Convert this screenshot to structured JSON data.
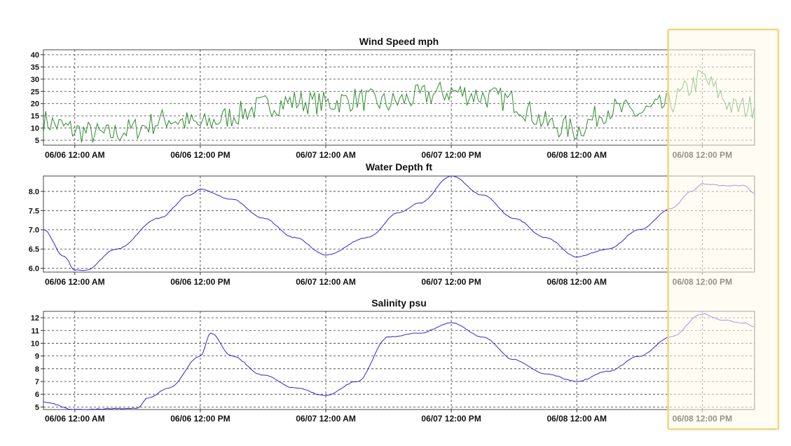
{
  "chart_data": [
    {
      "type": "line",
      "title": "Wind Speed mph",
      "xlabel": "",
      "ylabel": "",
      "x_start": "06/05 09:00 PM",
      "x_end": "06/08 05:00 PM",
      "x_ticks": [
        "06/06 12:00 AM",
        "06/06 12:00 PM",
        "06/07 12:00 AM",
        "06/07 12:00 PM",
        "06/08 12:00 AM",
        "06/08 12:00 PM"
      ],
      "y_ticks": [
        5,
        10,
        15,
        20,
        25,
        30,
        35,
        40
      ],
      "ylim": [
        3,
        42
      ],
      "grid": true,
      "color": "#2e8b2e",
      "series": [
        {
          "x": [
            "06/05 09:00 PM",
            "06/06 12:00 AM",
            "06/06 03:00 AM",
            "06/06 06:00 AM",
            "06/06 09:00 AM",
            "06/06 12:00 PM",
            "06/06 03:00 PM",
            "06/06 06:00 PM",
            "06/06 09:00 PM",
            "06/07 12:00 AM",
            "06/07 03:00 AM",
            "06/07 06:00 AM",
            "06/07 09:00 AM",
            "06/07 12:00 PM",
            "06/07 03:00 PM",
            "06/07 06:00 PM",
            "06/07 09:00 PM",
            "06/08 12:00 AM",
            "06/08 03:00 AM",
            "06/08 06:00 AM",
            "06/08 09:00 AM",
            "06/08 12:00 PM",
            "06/08 03:00 PM",
            "06/08 05:00 PM"
          ],
          "values": [
            13,
            9,
            7,
            10,
            14,
            11,
            15,
            19,
            21,
            20,
            22,
            20,
            23,
            25,
            23,
            21,
            12,
            9,
            18,
            16,
            20,
            31,
            18,
            19
          ]
        }
      ]
    },
    {
      "type": "line",
      "title": "Water Depth ft",
      "xlabel": "",
      "ylabel": "",
      "x_start": "06/05 09:00 PM",
      "x_end": "06/08 05:00 PM",
      "x_ticks": [
        "06/06 12:00 AM",
        "06/06 12:00 PM",
        "06/07 12:00 AM",
        "06/07 12:00 PM",
        "06/08 12:00 AM",
        "06/08 12:00 PM"
      ],
      "y_ticks": [
        6.0,
        6.5,
        7.0,
        7.5,
        8.0
      ],
      "y_tick_labels": [
        "6.0",
        "6.5",
        "7.0",
        "7.5",
        "8.0"
      ],
      "ylim": [
        5.9,
        8.4
      ],
      "grid": true,
      "color": "#3a1fd6",
      "series": [
        {
          "x": [
            "06/05 09:00 PM",
            "06/05 11:00 PM",
            "06/06 12:00 AM",
            "06/06 01:00 AM",
            "06/06 04:00 AM",
            "06/06 08:00 AM",
            "06/06 11:00 AM",
            "06/06 12:00 PM",
            "06/06 03:00 PM",
            "06/06 06:00 PM",
            "06/06 09:00 PM",
            "06/07 12:00 AM",
            "06/07 04:00 AM",
            "06/07 07:00 AM",
            "06/07 09:00 AM",
            "06/07 12:00 PM",
            "06/07 03:00 PM",
            "06/07 06:00 PM",
            "06/07 09:00 PM",
            "06/08 12:00 AM",
            "06/08 03:00 AM",
            "06/08 06:00 AM",
            "06/08 09:00 AM",
            "06/08 11:00 AM",
            "06/08 12:00 PM",
            "06/08 02:00 PM",
            "06/08 04:00 PM",
            "06/08 05:00 PM"
          ],
          "values": [
            7.0,
            6.3,
            5.95,
            5.95,
            6.5,
            7.3,
            7.9,
            8.05,
            7.8,
            7.3,
            6.8,
            6.35,
            6.8,
            7.45,
            7.7,
            8.4,
            7.9,
            7.3,
            6.8,
            6.3,
            6.5,
            7.0,
            7.55,
            8.0,
            8.2,
            8.15,
            8.15,
            7.95
          ]
        }
      ]
    },
    {
      "type": "line",
      "title": "Salinity psu",
      "xlabel": "",
      "ylabel": "",
      "x_start": "06/05 09:00 PM",
      "x_end": "06/08 05:00 PM",
      "x_ticks": [
        "06/06 12:00 AM",
        "06/06 12:00 PM",
        "06/07 12:00 AM",
        "06/07 12:00 PM",
        "06/08 12:00 AM",
        "06/08 12:00 PM"
      ],
      "y_ticks": [
        5,
        6,
        7,
        8,
        9,
        10,
        11,
        12
      ],
      "ylim": [
        4.8,
        12.5
      ],
      "grid": true,
      "color": "#3a1fd6",
      "series": [
        {
          "x": [
            "06/05 09:00 PM",
            "06/06 12:00 AM",
            "06/06 06:00 AM",
            "06/06 07:00 AM",
            "06/06 09:00 AM",
            "06/06 12:00 PM",
            "06/06 01:00 PM",
            "06/06 03:00 PM",
            "06/06 06:00 PM",
            "06/06 09:00 PM",
            "06/07 12:00 AM",
            "06/07 03:00 AM",
            "06/07 06:00 AM",
            "06/07 09:00 AM",
            "06/07 12:00 PM",
            "06/07 03:00 PM",
            "06/07 06:00 PM",
            "06/07 09:00 PM",
            "06/08 12:00 AM",
            "06/08 03:00 AM",
            "06/08 06:00 AM",
            "06/08 09:00 AM",
            "06/08 12:00 PM",
            "06/08 02:00 PM",
            "06/08 04:00 PM",
            "06/08 05:00 PM"
          ],
          "values": [
            5.4,
            4.8,
            4.9,
            5.7,
            6.5,
            9.0,
            10.8,
            9.0,
            7.5,
            6.5,
            5.9,
            7.0,
            10.5,
            10.8,
            11.6,
            10.5,
            8.7,
            7.6,
            7.0,
            7.8,
            9.0,
            10.5,
            12.3,
            11.8,
            11.6,
            11.3
          ]
        }
      ]
    }
  ],
  "highlight": {
    "start": "06/08 09:00 AM",
    "end": "06/08 05:00 PM",
    "fill": "#fdf9ea",
    "stroke": "#f2d57e"
  }
}
